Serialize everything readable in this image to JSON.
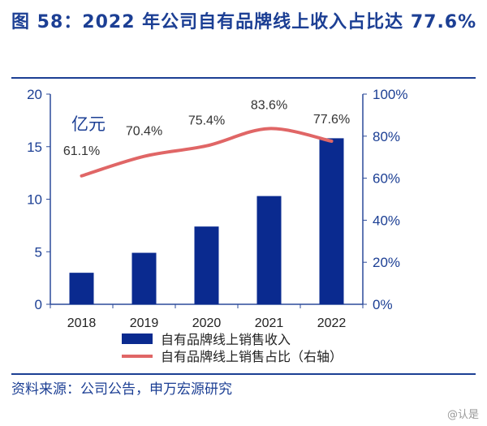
{
  "title": "图 58：2022 年公司自有品牌线上收入占比达 77.6%",
  "source": "资料来源：公司公告，申万宏源研究",
  "watermark": "@认是",
  "colors": {
    "bar": "#0a2a8f",
    "line": "#e06666",
    "axis": "#2b4a9a",
    "title": "#1c3f94"
  },
  "chart_data": {
    "type": "bar+line",
    "categories": [
      "2018",
      "2019",
      "2020",
      "2021",
      "2022"
    ],
    "unit_label": "亿元",
    "series": [
      {
        "name": "自有品牌线上销售收入",
        "type": "bar",
        "axis": "left",
        "values": [
          3.0,
          4.9,
          7.4,
          10.3,
          15.8
        ]
      },
      {
        "name": "自有品牌线上销售占比（右轴）",
        "type": "line",
        "axis": "right",
        "values": [
          61.1,
          70.4,
          75.4,
          83.6,
          77.6
        ],
        "labels": [
          "61.1%",
          "70.4%",
          "75.4%",
          "83.6%",
          "77.6%"
        ]
      }
    ],
    "left_axis": {
      "range": [
        0,
        20
      ],
      "ticks": [
        "0",
        "5",
        "10",
        "15",
        "20"
      ]
    },
    "right_axis": {
      "range": [
        0,
        100
      ],
      "ticks": [
        "0%",
        "20%",
        "40%",
        "60%",
        "80%",
        "100%"
      ]
    },
    "legend_position": "bottom",
    "grid": false
  }
}
